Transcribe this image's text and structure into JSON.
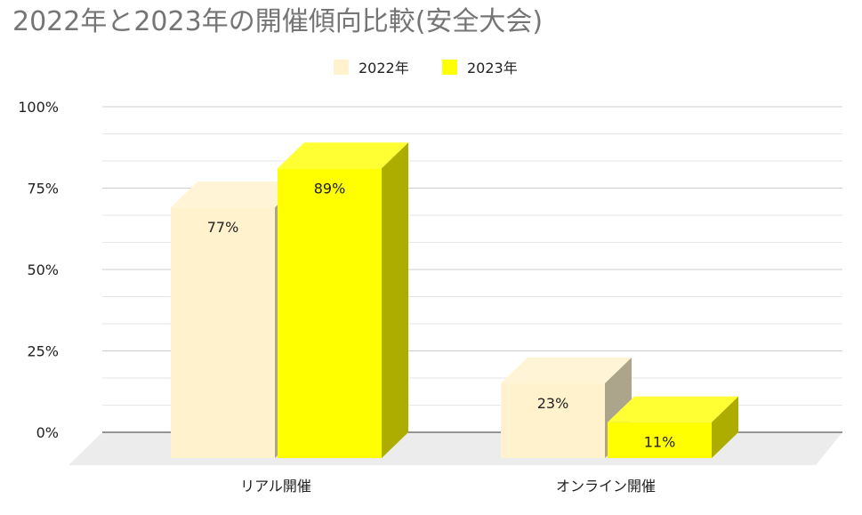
{
  "chart_data": {
    "type": "bar",
    "title": "2022年と2023年の開催傾向比較(安全大会)",
    "categories": [
      "リアル開催",
      "オンライン開催"
    ],
    "series": [
      {
        "name": "2022年",
        "values": [
          77,
          23
        ],
        "labels": [
          "77%",
          "23%"
        ],
        "color": "#FFF2CC"
      },
      {
        "name": "2023年",
        "values": [
          89,
          11
        ],
        "labels": [
          "89%",
          "11%"
        ],
        "color": "#FFFF00"
      }
    ],
    "ylim": [
      0,
      100
    ],
    "yticks": [
      {
        "value": 0,
        "label": "0%"
      },
      {
        "value": 25,
        "label": "25%"
      },
      {
        "value": 50,
        "label": "50%"
      },
      {
        "value": 75,
        "label": "75%"
      },
      {
        "value": 100,
        "label": "100%"
      }
    ],
    "xlabel": "",
    "ylabel": "",
    "legend_position": "top-center",
    "grid": true,
    "style": "3d-bar"
  }
}
